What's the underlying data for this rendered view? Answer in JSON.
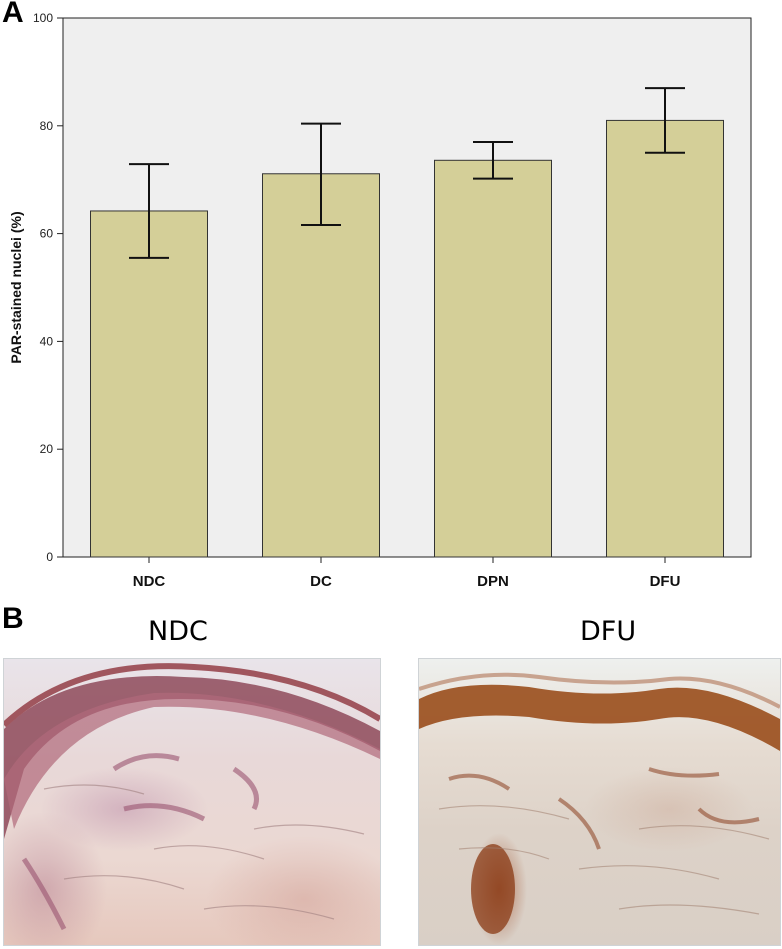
{
  "panel_a_label": "A",
  "panel_b_label": "B",
  "chart_data": {
    "type": "bar",
    "categories": [
      "NDC",
      "DC",
      "DPN",
      "DFU"
    ],
    "values": [
      64.2,
      71.1,
      73.6,
      81.0
    ],
    "error_low": [
      55.5,
      61.6,
      70.2,
      75.0
    ],
    "error_high": [
      72.9,
      80.4,
      77.0,
      87.0
    ],
    "ylabel": "PAR-stained nuclei (%)",
    "xlabel": "",
    "ylim": [
      0,
      100
    ],
    "yticks": [
      0,
      20,
      40,
      60,
      80,
      100
    ],
    "grid": false,
    "colors": {
      "bar": "#d4cf98",
      "plot_bg": "#efefef"
    }
  },
  "images": {
    "left_title": "NDC",
    "right_title": "DFU"
  }
}
